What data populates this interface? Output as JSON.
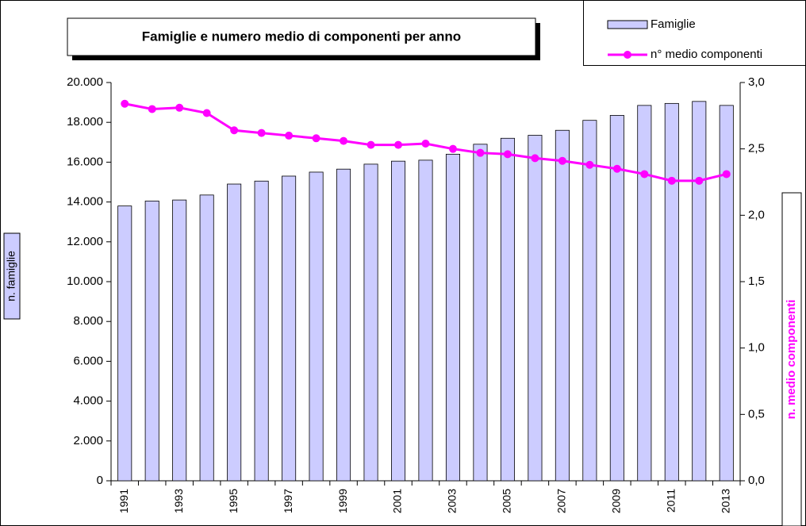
{
  "chart_data": {
    "type": "bar_line",
    "title": "Famiglie e numero medio di componenti per anno",
    "ylabel": "n. famiglie",
    "y2label": "n. medio componenti",
    "categories": [
      "1991",
      null,
      "1993",
      null,
      "1995",
      null,
      "1997",
      null,
      "1999",
      null,
      "2001",
      null,
      "2003",
      null,
      "2005",
      null,
      "2007",
      null,
      "2009",
      null,
      "2011",
      null,
      "2013"
    ],
    "series": [
      {
        "name": "Famiglie",
        "type": "bar",
        "color": "#ccccff",
        "axis": "y",
        "values": [
          13800,
          14050,
          14100,
          14350,
          14900,
          15050,
          15300,
          15500,
          15650,
          15900,
          16050,
          16100,
          16400,
          16900,
          17200,
          17350,
          17600,
          18100,
          18350,
          18850,
          18950,
          19050,
          18850
        ]
      },
      {
        "name": "n° medio componenti",
        "type": "line",
        "color": "#ff00ff",
        "axis": "y2",
        "values": [
          2.84,
          2.8,
          2.81,
          2.77,
          2.64,
          2.62,
          2.6,
          2.58,
          2.56,
          2.53,
          2.53,
          2.54,
          2.5,
          2.47,
          2.46,
          2.43,
          2.41,
          2.38,
          2.35,
          2.31,
          2.26,
          2.26,
          2.31
        ]
      }
    ],
    "ylim": [
      0,
      20000
    ],
    "yticks": [
      0,
      {
        "value": 2000,
        "label": "2.000"
      },
      {
        "value": 4000,
        "label": "4.000"
      },
      {
        "value": 6000,
        "label": "6.000"
      },
      {
        "value": 8000,
        "label": "8.000"
      },
      {
        "value": 10000,
        "label": "10.000"
      },
      {
        "value": 12000,
        "label": "12.000"
      },
      {
        "value": 14000,
        "label": "14.000"
      },
      {
        "value": 16000,
        "label": "16.000"
      },
      {
        "value": 18000,
        "label": "18.000"
      },
      {
        "value": 20000,
        "label": "20.000"
      }
    ],
    "y2lim": [
      0,
      3
    ],
    "y2ticks": [
      {
        "value": 0,
        "label": "0,0"
      },
      {
        "value": 0.5,
        "label": "0,5"
      },
      {
        "value": 1,
        "label": "1,0"
      },
      {
        "value": 1.5,
        "label": "1,5"
      },
      {
        "value": 2,
        "label": "2,0"
      },
      {
        "value": 2.5,
        "label": "2,5"
      },
      {
        "value": 3,
        "label": "3,0"
      }
    ],
    "grid": false
  }
}
